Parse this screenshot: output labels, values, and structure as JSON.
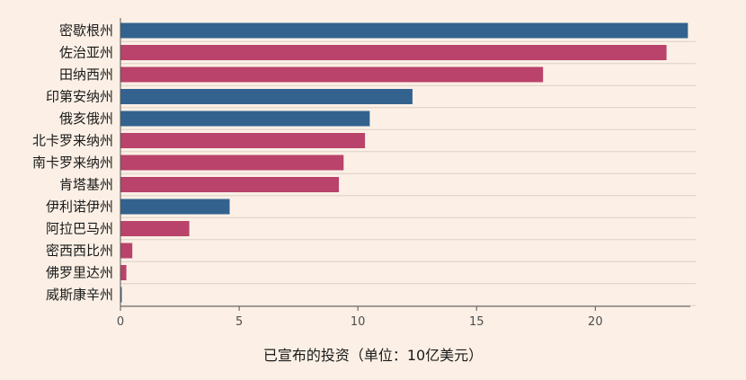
{
  "chart_data": {
    "type": "bar",
    "orientation": "horizontal",
    "title": "",
    "xlabel": "已宣布的投资（单位：10亿美元）",
    "ylabel": "",
    "xlim": [
      0,
      24
    ],
    "xticks": [
      0,
      5,
      10,
      15,
      20
    ],
    "grid": true,
    "legend": "none",
    "categories": [
      "密歇根州",
      "佐治亚州",
      "田纳西州",
      "印第安纳州",
      "俄亥俄州",
      "北卡罗来纳州",
      "南卡罗来纳州",
      "肯塔基州",
      "伊利诺伊州",
      "阿拉巴马州",
      "密西西比州",
      "佛罗里达州",
      "威斯康辛州"
    ],
    "values": [
      23.9,
      23.0,
      17.8,
      12.3,
      10.5,
      10.3,
      9.4,
      9.2,
      4.6,
      2.9,
      0.5,
      0.25,
      0.05
    ],
    "bar_colors": [
      "#33628f",
      "#b9436a",
      "#b9436a",
      "#33628f",
      "#33628f",
      "#b9436a",
      "#b9436a",
      "#b9436a",
      "#33628f",
      "#b9436a",
      "#b9436a",
      "#b9436a",
      "#33628f"
    ],
    "colors": {
      "blue": "#33628f",
      "red": "#b9436a"
    }
  }
}
